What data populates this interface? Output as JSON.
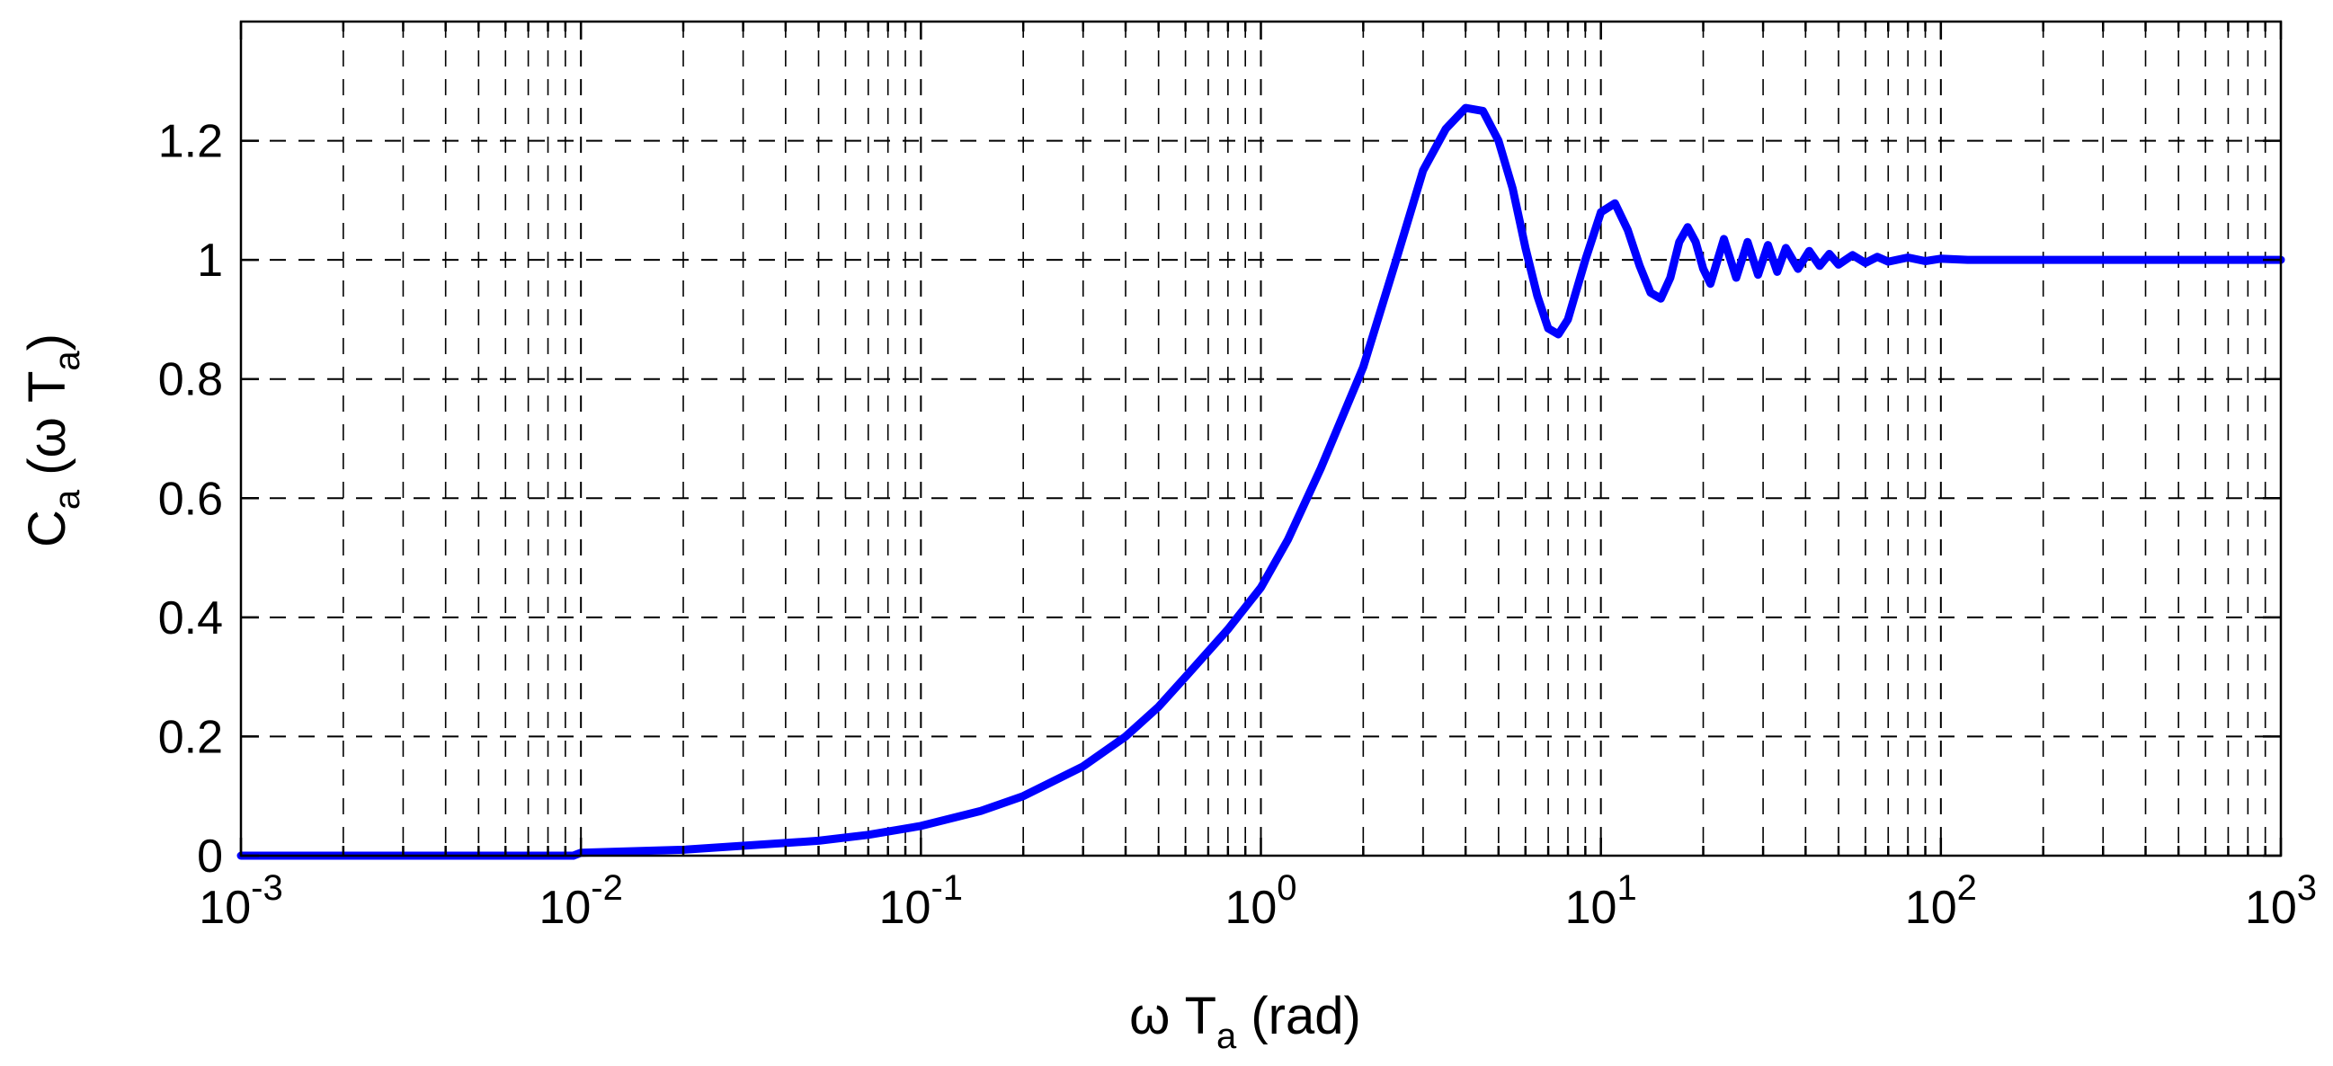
{
  "chart_data": {
    "type": "line",
    "xscale": "log",
    "xlim": [
      0.001,
      1000
    ],
    "ylim": [
      0,
      1.4
    ],
    "grid": true,
    "xlabel": {
      "main": "ω T",
      "sub": "a",
      "tail": " (rad)"
    },
    "ylabel": {
      "main": "C",
      "sub": "a",
      "mid": " (ω T",
      "sub2": "a",
      "tail": ")"
    },
    "x_ticks": [
      {
        "value": 0.001,
        "base": "10",
        "exp": "-3"
      },
      {
        "value": 0.01,
        "base": "10",
        "exp": "-2"
      },
      {
        "value": 0.1,
        "base": "10",
        "exp": "-1"
      },
      {
        "value": 1,
        "base": "10",
        "exp": "0"
      },
      {
        "value": 10,
        "base": "10",
        "exp": "1"
      },
      {
        "value": 100,
        "base": "10",
        "exp": "2"
      },
      {
        "value": 1000,
        "base": "10",
        "exp": "3"
      }
    ],
    "y_ticks": [
      {
        "value": 0,
        "label": "0"
      },
      {
        "value": 0.2,
        "label": "0.2"
      },
      {
        "value": 0.4,
        "label": "0.4"
      },
      {
        "value": 0.6,
        "label": "0.6"
      },
      {
        "value": 0.8,
        "label": "0.8"
      },
      {
        "value": 1,
        "label": "1"
      },
      {
        "value": 1.2,
        "label": "1.2"
      }
    ],
    "series": [
      {
        "color": "#0000ff",
        "x": [
          0.001,
          0.002,
          0.005,
          0.0095,
          0.01,
          0.02,
          0.05,
          0.07,
          0.1,
          0.15,
          0.2,
          0.3,
          0.4,
          0.5,
          0.6,
          0.8,
          1.0,
          1.2,
          1.5,
          2.0,
          2.5,
          3.0,
          3.5,
          4.0,
          4.5,
          5.0,
          5.5,
          6.0,
          6.5,
          7.0,
          7.5,
          8.0,
          9.0,
          10.0,
          11.0,
          12.0,
          13.0,
          14.0,
          15.0,
          16.0,
          17.0,
          18.0,
          19.0,
          20.0,
          21.0,
          23.0,
          25.0,
          27.0,
          29.0,
          31.0,
          33.0,
          35.0,
          38.0,
          41.0,
          44.0,
          47.0,
          50.0,
          55.0,
          60.0,
          65.0,
          70.0,
          80.0,
          90.0,
          100.0,
          120.0,
          150.0,
          200.0,
          300.0,
          500.0,
          1000.0
        ],
        "y": [
          0.0,
          0.0,
          0.0,
          0.0,
          0.005,
          0.01,
          0.025,
          0.035,
          0.05,
          0.075,
          0.1,
          0.15,
          0.2,
          0.25,
          0.3,
          0.38,
          0.45,
          0.53,
          0.65,
          0.82,
          1.0,
          1.15,
          1.22,
          1.255,
          1.25,
          1.2,
          1.12,
          1.02,
          0.94,
          0.885,
          0.875,
          0.9,
          1.0,
          1.08,
          1.095,
          1.05,
          0.99,
          0.945,
          0.935,
          0.97,
          1.03,
          1.055,
          1.03,
          0.985,
          0.96,
          1.035,
          0.97,
          1.03,
          0.975,
          1.025,
          0.98,
          1.02,
          0.985,
          1.015,
          0.99,
          1.01,
          0.992,
          1.008,
          0.995,
          1.005,
          0.997,
          1.004,
          0.998,
          1.002,
          1.0,
          1.0,
          1.0,
          1.0,
          1.0,
          1.0
        ]
      }
    ]
  }
}
